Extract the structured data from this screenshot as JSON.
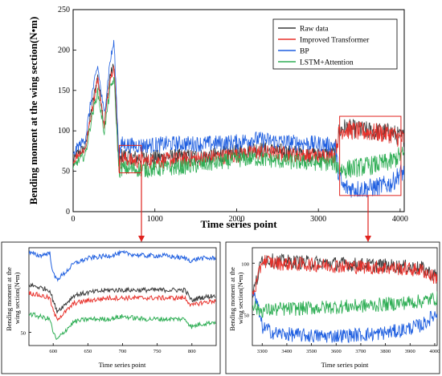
{
  "chart_data": [
    {
      "id": "main",
      "type": "line",
      "title": "",
      "xlabel": "Time series point",
      "ylabel": "Bending moment at the wing section(N•m)",
      "xlim": [
        0,
        4050
      ],
      "ylim": [
        0,
        250
      ],
      "xticks": [
        0,
        1000,
        2000,
        3000,
        4000
      ],
      "yticks": [
        0,
        50,
        100,
        150,
        200,
        250
      ],
      "legend_position": "top-right",
      "grid": false,
      "series": [
        {
          "name": "Raw data",
          "color": "#3a3a3a",
          "x": [
            0,
            50,
            150,
            230,
            300,
            380,
            450,
            500,
            560,
            600,
            700,
            900,
            1200,
            1600,
            2000,
            2200,
            2600,
            3000,
            3200,
            3250,
            3300,
            3500,
            3700,
            3900,
            4000
          ],
          "y": [
            62,
            72,
            80,
            130,
            168,
            108,
            168,
            182,
            58,
            70,
            67,
            66,
            68,
            68,
            74,
            78,
            74,
            70,
            72,
            98,
            104,
            101,
            99,
            98,
            92
          ]
        },
        {
          "name": "Improved Transformer",
          "color": "#e8302a",
          "x": [
            0,
            50,
            150,
            230,
            300,
            380,
            450,
            500,
            560,
            600,
            700,
            900,
            1200,
            1600,
            2000,
            2200,
            2600,
            3000,
            3200,
            3250,
            3300,
            3500,
            3700,
            3900,
            4000
          ],
          "y": [
            60,
            70,
            78,
            125,
            165,
            105,
            165,
            180,
            56,
            66,
            63,
            62,
            64,
            66,
            70,
            74,
            71,
            69,
            70,
            96,
            102,
            99,
            98,
            96,
            90
          ]
        },
        {
          "name": "BP",
          "color": "#1f5fe0",
          "x": [
            0,
            50,
            150,
            230,
            300,
            380,
            450,
            500,
            560,
            600,
            700,
            900,
            1200,
            1600,
            2000,
            2200,
            2600,
            3000,
            3200,
            3250,
            3300,
            3500,
            3700,
            3900,
            4000
          ],
          "y": [
            68,
            80,
            90,
            145,
            180,
            120,
            185,
            210,
            70,
            84,
            82,
            82,
            84,
            84,
            86,
            90,
            86,
            84,
            82,
            45,
            30,
            28,
            30,
            35,
            48
          ]
        },
        {
          "name": "LSTM+Attention",
          "color": "#2fae55",
          "x": [
            0,
            50,
            150,
            230,
            300,
            380,
            450,
            500,
            560,
            600,
            700,
            900,
            1200,
            1600,
            2000,
            2200,
            2600,
            3000,
            3200,
            3250,
            3300,
            3500,
            3700,
            3900,
            4000
          ],
          "y": [
            52,
            62,
            70,
            118,
            148,
            98,
            150,
            165,
            50,
            54,
            53,
            52,
            54,
            58,
            64,
            66,
            62,
            60,
            60,
            54,
            52,
            55,
            58,
            62,
            70
          ]
        }
      ]
    },
    {
      "id": "zoom-left",
      "type": "line",
      "title": "",
      "xlabel": "Time series point",
      "ylabel": "Bending moment at the wing section(N•m)",
      "xlim": [
        565,
        835
      ],
      "ylim": [
        45,
        82
      ],
      "xticks": [
        600,
        650,
        700,
        750,
        800
      ],
      "yticks": [
        50
      ],
      "grid": false,
      "series": [
        {
          "name": "Raw data",
          "color": "#3a3a3a",
          "x": [
            565,
            580,
            595,
            600,
            605,
            615,
            630,
            650,
            680,
            700,
            730,
            760,
            790,
            800,
            810,
            835
          ],
          "y": [
            68,
            67,
            66,
            62,
            58,
            60,
            64,
            65,
            66,
            66,
            66,
            66,
            66,
            62,
            63,
            64
          ]
        },
        {
          "name": "Improved Transformer",
          "color": "#e8302a",
          "x": [
            565,
            580,
            595,
            600,
            605,
            615,
            630,
            650,
            680,
            700,
            730,
            760,
            790,
            800,
            810,
            835
          ],
          "y": [
            65,
            64,
            63,
            58,
            55,
            57,
            61,
            62,
            63,
            63,
            63,
            63,
            63,
            60,
            61,
            62
          ]
        },
        {
          "name": "BP",
          "color": "#1f5fe0",
          "x": [
            565,
            580,
            595,
            600,
            605,
            615,
            630,
            650,
            680,
            700,
            730,
            760,
            790,
            800,
            810,
            835
          ],
          "y": [
            80,
            79,
            80,
            72,
            70,
            72,
            76,
            78,
            79,
            80,
            79,
            79,
            78,
            77,
            78,
            78
          ]
        },
        {
          "name": "LSTM+Attention",
          "color": "#2fae55",
          "x": [
            565,
            580,
            595,
            600,
            605,
            615,
            630,
            650,
            680,
            700,
            730,
            760,
            790,
            800,
            810,
            835
          ],
          "y": [
            57,
            56,
            55,
            50,
            47,
            50,
            54,
            55,
            55,
            56,
            55,
            55,
            55,
            52,
            53,
            54
          ]
        }
      ]
    },
    {
      "id": "zoom-right",
      "type": "line",
      "title": "",
      "xlabel": "Time series point",
      "ylabel": "Bending moment at the wing section(N•m)",
      "xlim": [
        3260,
        4010
      ],
      "ylim": [
        20,
        115
      ],
      "xticks": [
        3300,
        3400,
        3500,
        3600,
        3700,
        3800,
        3900,
        4000
      ],
      "yticks": [
        50,
        100
      ],
      "grid": false,
      "series": [
        {
          "name": "Raw data",
          "color": "#3a3a3a",
          "x": [
            3260,
            3280,
            3300,
            3350,
            3450,
            3550,
            3650,
            3750,
            3850,
            3950,
            4000
          ],
          "y": [
            70,
            85,
            105,
            102,
            101,
            100,
            99,
            98,
            97,
            95,
            88
          ]
        },
        {
          "name": "Improved Transformer",
          "color": "#e8302a",
          "x": [
            3260,
            3280,
            3300,
            3350,
            3450,
            3550,
            3650,
            3750,
            3850,
            3950,
            4000
          ],
          "y": [
            68,
            82,
            103,
            100,
            99,
            98,
            97,
            96,
            95,
            93,
            86
          ]
        },
        {
          "name": "BP",
          "color": "#1f5fe0",
          "x": [
            3260,
            3280,
            3300,
            3350,
            3450,
            3550,
            3650,
            3750,
            3850,
            3950,
            4000
          ],
          "y": [
            72,
            60,
            38,
            32,
            30,
            29,
            30,
            31,
            34,
            40,
            50
          ]
        },
        {
          "name": "LSTM+Attention",
          "color": "#2fae55",
          "x": [
            3260,
            3280,
            3300,
            3350,
            3450,
            3550,
            3650,
            3750,
            3850,
            3950,
            4000
          ],
          "y": [
            62,
            55,
            54,
            55,
            56,
            57,
            58,
            59,
            61,
            63,
            66
          ]
        }
      ]
    }
  ],
  "highlight_boxes": [
    {
      "id": "box-left",
      "x_range": [
        565,
        835
      ],
      "y_range": [
        48,
        82
      ]
    },
    {
      "id": "box-right",
      "x_range": [
        3260,
        4010
      ],
      "y_range": [
        20,
        118
      ]
    }
  ],
  "colors": {
    "highlight": "#e0231f",
    "axis": "#000000"
  }
}
